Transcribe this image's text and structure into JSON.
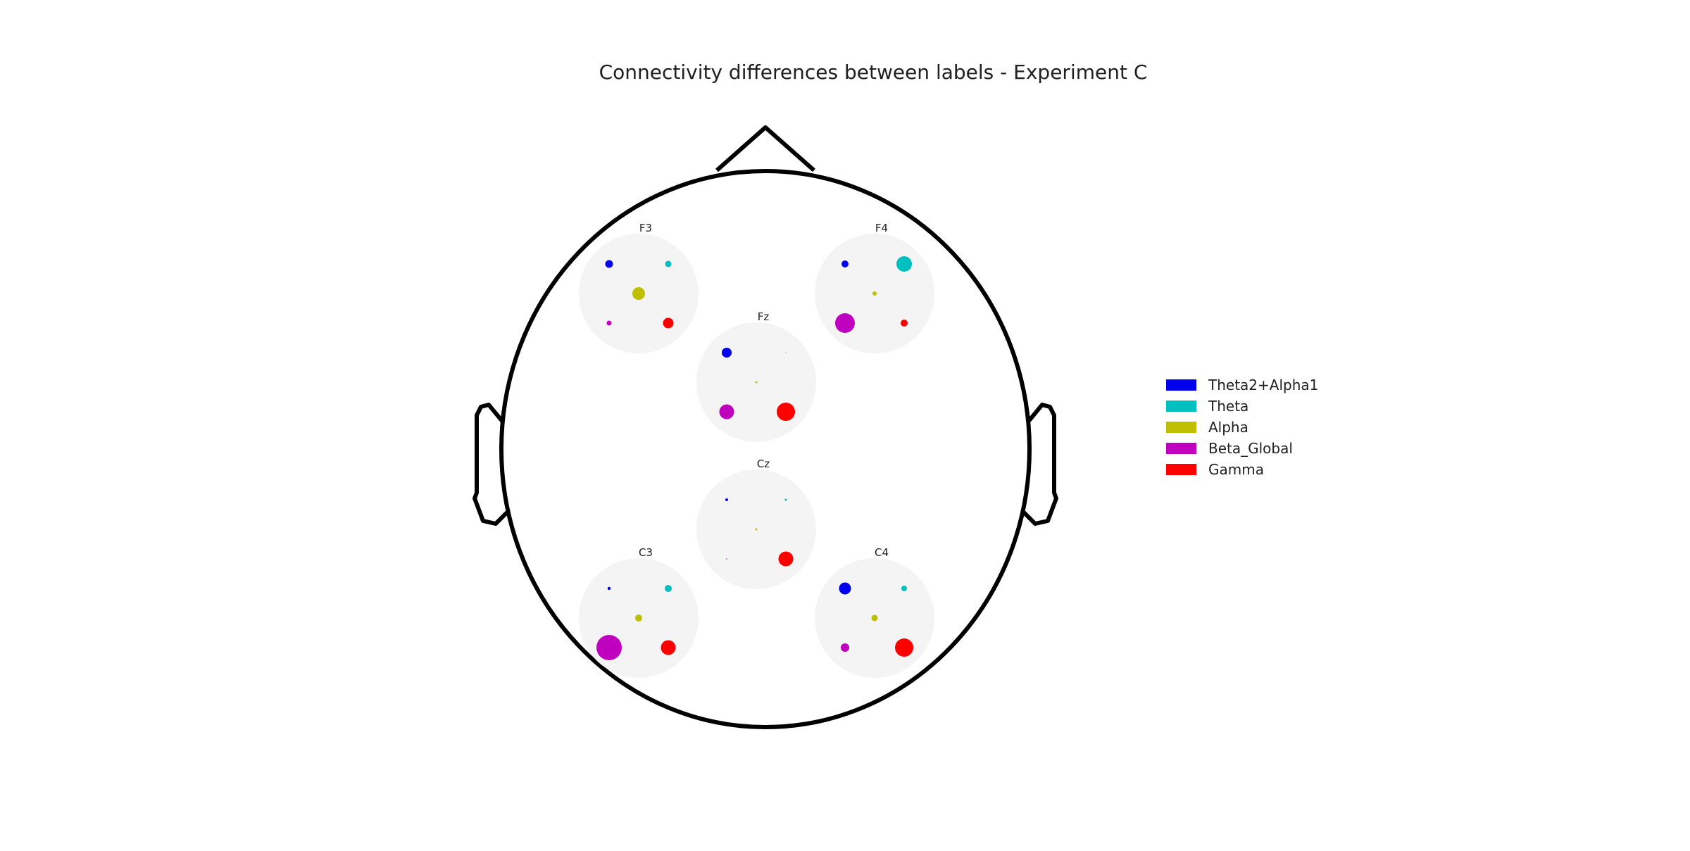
{
  "title": "Connectivity differences between labels - Experiment C",
  "bands": [
    {
      "name": "Theta2+Alpha1",
      "color": "#0000ee"
    },
    {
      "name": "Theta",
      "color": "#00bfbf"
    },
    {
      "name": "Alpha",
      "color": "#bfbf00"
    },
    {
      "name": "Beta_Global",
      "color": "#bf00bf"
    },
    {
      "name": "Gamma",
      "color": "#ff0000"
    }
  ],
  "electrodes": [
    {
      "label": "F3",
      "values": [
        5.5,
        4.5,
        9,
        3.5,
        7.5
      ]
    },
    {
      "label": "F4",
      "values": [
        5,
        11,
        3,
        14,
        5
      ]
    },
    {
      "label": "Fz",
      "values": [
        7,
        0.6,
        1.5,
        10.5,
        13
      ]
    },
    {
      "label": "Cz",
      "values": [
        2,
        1.5,
        1.5,
        0.8,
        10.5
      ]
    },
    {
      "label": "C3",
      "values": [
        2.2,
        5,
        5,
        18,
        10.5
      ]
    },
    {
      "label": "C4",
      "values": [
        8.5,
        4,
        4.5,
        6,
        13
      ]
    }
  ]
}
